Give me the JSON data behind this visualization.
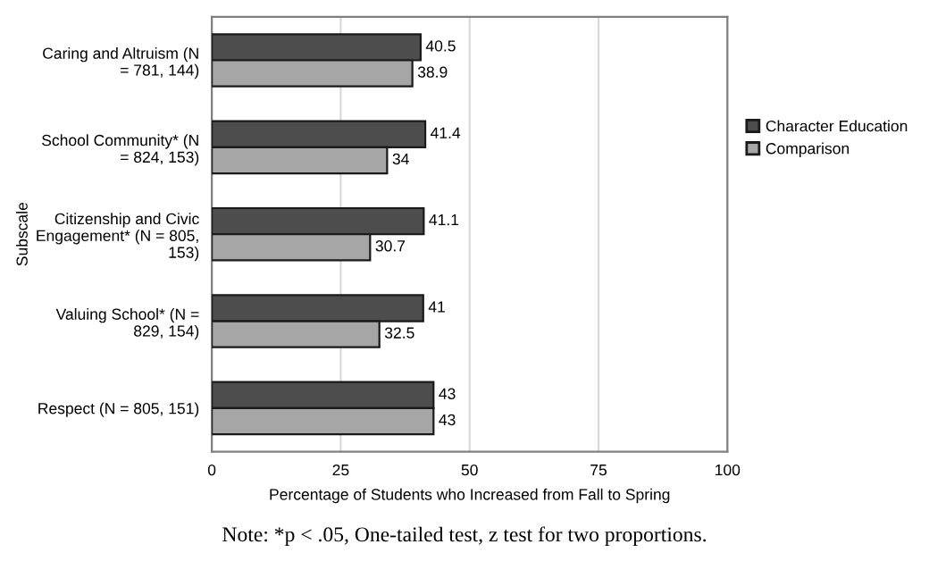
{
  "chart_data": {
    "type": "bar",
    "orientation": "horizontal",
    "categories": [
      "Caring and Altruism (N\n= 781, 144)",
      "School Community* (N\n= 824, 153)",
      "Citizenship and Civic\nEngagement* (N = 805,\n153)",
      "Valuing School* (N =\n829, 154)",
      "Respect (N = 805, 151)"
    ],
    "series": [
      {
        "name": "Character Education",
        "color": "#4d4d4d",
        "values": [
          40.5,
          41.4,
          41.1,
          41,
          43
        ]
      },
      {
        "name": "Comparison",
        "color": "#a6a6a6",
        "values": [
          38.9,
          34,
          30.7,
          32.5,
          43
        ]
      }
    ],
    "xlim": [
      0,
      100
    ],
    "xticks": [
      0,
      25,
      50,
      75,
      100
    ],
    "xlabel": "Percentage of Students who Increased from Fall to Spring",
    "ylabel": "Subscale",
    "grid": "x",
    "legend": "right",
    "data_labels": true,
    "annotations": [
      "Note: *p < .05, One-tailed test, z test for two proportions."
    ]
  }
}
